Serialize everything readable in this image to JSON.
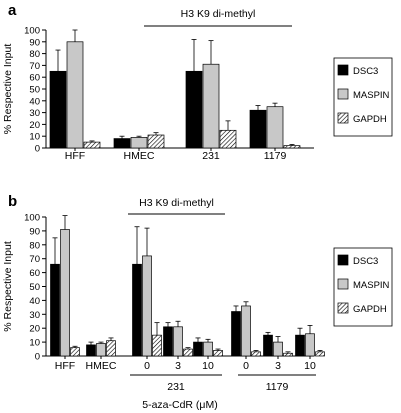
{
  "patterns": {
    "gapdh": "diagonal-hatch"
  },
  "colors": {
    "dsc3": "#000000",
    "maspin": "#c8c8c8",
    "gapdh_stroke": "#000000",
    "axis": "#000000"
  },
  "chart_data": [
    {
      "panel_label": "a",
      "type": "bar",
      "title": "H3 K9 di-methyl",
      "ylabel": "% Respective Input",
      "xlabel": "",
      "ylim": [
        0,
        100
      ],
      "yticks": [
        0,
        10,
        20,
        30,
        40,
        50,
        60,
        70,
        80,
        90,
        100
      ],
      "grid": false,
      "legend_position": "right",
      "categories": [
        "HFF",
        "HMEC",
        "231",
        "1179"
      ],
      "series": [
        {
          "name": "DSC3",
          "values": [
            65,
            8,
            65,
            32
          ],
          "errors": [
            18,
            2,
            27,
            4
          ]
        },
        {
          "name": "MASPIN",
          "values": [
            90,
            9,
            71,
            35
          ],
          "errors": [
            10,
            1,
            20,
            3
          ]
        },
        {
          "name": "GAPDH",
          "values": [
            5,
            11,
            15,
            2
          ],
          "errors": [
            1,
            2,
            8,
            1
          ]
        }
      ]
    },
    {
      "panel_label": "b",
      "type": "bar",
      "title": "H3 K9 di-methyl",
      "ylabel": "% Respective Input",
      "xlabel": "5-aza-CdR (μM)",
      "ylim": [
        0,
        100
      ],
      "yticks": [
        0,
        10,
        20,
        30,
        40,
        50,
        60,
        70,
        80,
        90,
        100
      ],
      "grid": false,
      "legend_position": "right",
      "categories": [
        "HFF",
        "HMEC",
        "0",
        "3",
        "10",
        "0",
        "3",
        "10"
      ],
      "group_labels": [
        {
          "label": "231",
          "categories": [
            "0",
            "3",
            "10"
          ]
        },
        {
          "label": "1179",
          "categories": [
            "0",
            "3",
            "10"
          ]
        }
      ],
      "series": [
        {
          "name": "DSC3",
          "values": [
            66,
            8,
            66,
            21,
            10,
            32,
            15,
            15
          ],
          "errors": [
            19,
            2,
            27,
            3,
            3,
            4,
            2,
            5
          ]
        },
        {
          "name": "MASPIN",
          "values": [
            91,
            9,
            72,
            21,
            10,
            36,
            10,
            16
          ],
          "errors": [
            10,
            1,
            20,
            4,
            2,
            3,
            4,
            6
          ]
        },
        {
          "name": "GAPDH",
          "values": [
            6,
            11,
            15,
            5,
            4,
            3,
            2,
            3
          ],
          "errors": [
            1,
            2,
            9,
            1,
            1,
            1,
            1,
            1
          ]
        }
      ]
    }
  ]
}
